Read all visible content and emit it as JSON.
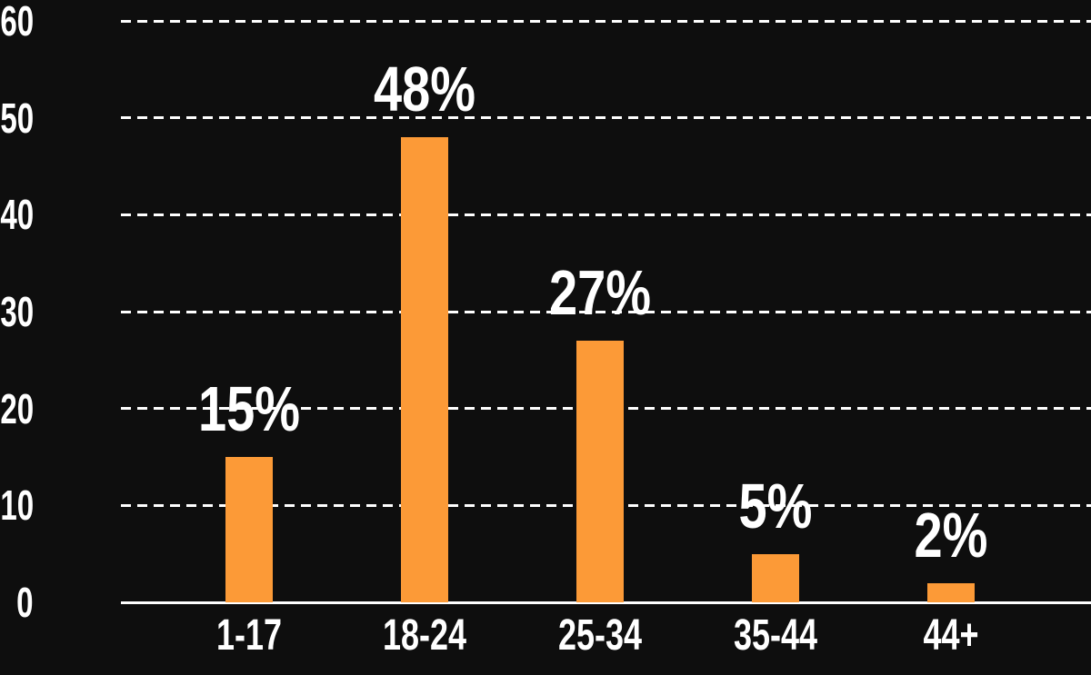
{
  "chart_data": {
    "type": "bar",
    "categories": [
      "1-17",
      "18-24",
      "25-34",
      "35-44",
      "44+"
    ],
    "values": [
      15,
      48,
      27,
      5,
      2
    ],
    "value_labels": [
      "15%",
      "48%",
      "27%",
      "5%",
      "2%"
    ],
    "title": "",
    "xlabel": "",
    "ylabel": "",
    "ylim": [
      0,
      60
    ],
    "yticks": [
      0,
      10,
      20,
      30,
      40,
      50,
      60
    ],
    "grid": "horizontal-dashed",
    "legend": "none",
    "colors": {
      "background": "#0e0e0e",
      "bar": "#FC9A37",
      "gridline": "#FFFFFF",
      "axis_line": "#FFFFFF",
      "text": "#FFFFFF"
    }
  }
}
